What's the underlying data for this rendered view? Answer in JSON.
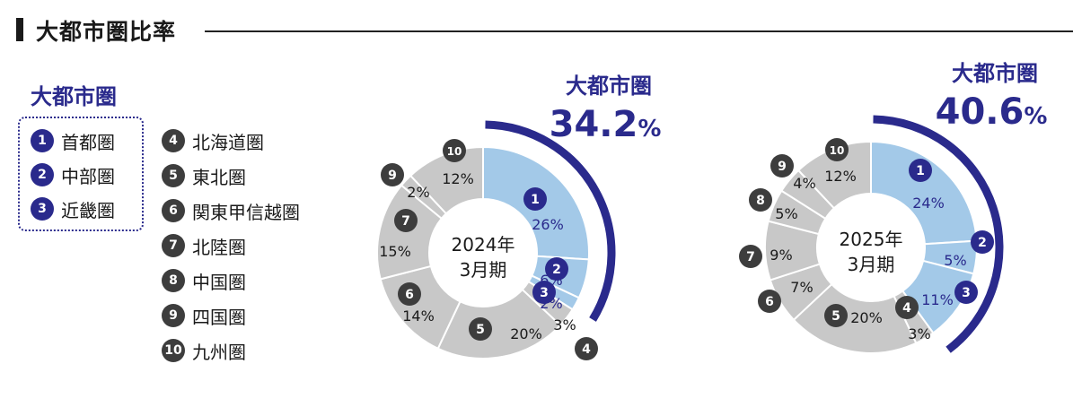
{
  "header": {
    "title": "大都市圏比率"
  },
  "legend": {
    "title": "大都市圏",
    "metro_items": [
      {
        "num": "1",
        "label": "首都圏"
      },
      {
        "num": "2",
        "label": "中部圏"
      },
      {
        "num": "3",
        "label": "近畿圏"
      }
    ],
    "other_items": [
      {
        "num": "4",
        "label": "北海道圏"
      },
      {
        "num": "5",
        "label": "東北圏"
      },
      {
        "num": "6",
        "label": "関東甲信越圏"
      },
      {
        "num": "7",
        "label": "北陸圏"
      },
      {
        "num": "8",
        "label": "中国圏"
      },
      {
        "num": "9",
        "label": "四国圏"
      },
      {
        "num": "10",
        "label": "九州圏"
      }
    ]
  },
  "colors": {
    "metro_slice": "#a3c9e8",
    "other_slice": "#c8c8c8",
    "accent": "#2a2a8c",
    "badge_dark": "#3d3d3d"
  },
  "chart_data": [
    {
      "type": "pie",
      "center_label": [
        "2024年",
        "3月期"
      ],
      "metro_label": "大都市圏",
      "metro_value": "34.2",
      "metro_unit": "%",
      "categories": [
        "1",
        "2",
        "3",
        "4",
        "5",
        "6",
        "7",
        "8",
        "9",
        "10"
      ],
      "values": [
        26,
        6,
        2,
        3,
        20,
        14,
        15,
        0,
        2,
        12
      ],
      "labels": [
        "26%",
        "6%",
        "2%",
        "3%",
        "20%",
        "14%",
        "15%",
        "",
        "2%",
        "12%"
      ],
      "metro_categories": [
        "1",
        "2",
        "3"
      ]
    },
    {
      "type": "pie",
      "center_label": [
        "2025年",
        "3月期"
      ],
      "metro_label": "大都市圏",
      "metro_value": "40.6",
      "metro_unit": "%",
      "categories": [
        "1",
        "2",
        "3",
        "4",
        "5",
        "6",
        "7",
        "8",
        "9",
        "10"
      ],
      "values": [
        24,
        5,
        11,
        3,
        20,
        7,
        9,
        5,
        4,
        12
      ],
      "labels": [
        "24%",
        "5%",
        "11%",
        "3%",
        "20%",
        "7%",
        "9%",
        "5%",
        "4%",
        "12%"
      ],
      "metro_categories": [
        "1",
        "2",
        "3"
      ]
    }
  ]
}
